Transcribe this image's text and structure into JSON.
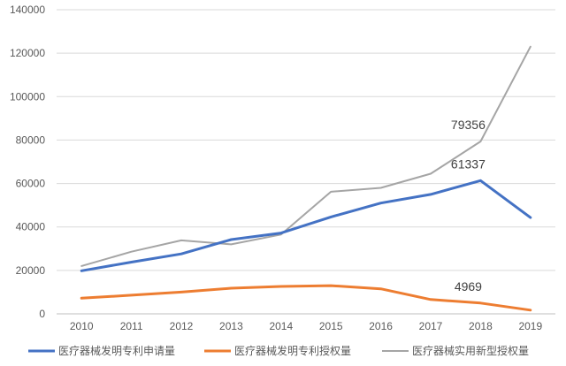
{
  "chart_data": {
    "type": "line",
    "x": [
      "2010",
      "2011",
      "2012",
      "2013",
      "2014",
      "2015",
      "2016",
      "2017",
      "2018",
      "2019"
    ],
    "ylim": [
      0,
      140000
    ],
    "yticks": [
      "0",
      "20000",
      "40000",
      "60000",
      "80000",
      "100000",
      "120000",
      "140000"
    ],
    "grid": true,
    "legend_position": "bottom",
    "series": [
      {
        "name": "医疗器械发明专利申请量",
        "color": "#4472C4",
        "values": [
          19800,
          23800,
          27600,
          34200,
          37200,
          44600,
          51000,
          55000,
          61337,
          44300
        ]
      },
      {
        "name": "医疗器械发明专利授权量",
        "color": "#ED7D31",
        "values": [
          7200,
          8600,
          10000,
          11800,
          12600,
          13000,
          11500,
          6600,
          4969,
          1700
        ]
      },
      {
        "name": "医疗器械实用新型授权量",
        "color": "#A5A5A5",
        "values": [
          22000,
          28600,
          33800,
          32000,
          36500,
          56200,
          58000,
          64500,
          79356,
          123000
        ]
      }
    ],
    "data_labels": [
      {
        "series": 2,
        "index": 8,
        "text": "79356"
      },
      {
        "series": 0,
        "index": 8,
        "text": "61337"
      },
      {
        "series": 1,
        "index": 8,
        "text": "4969"
      }
    ]
  }
}
